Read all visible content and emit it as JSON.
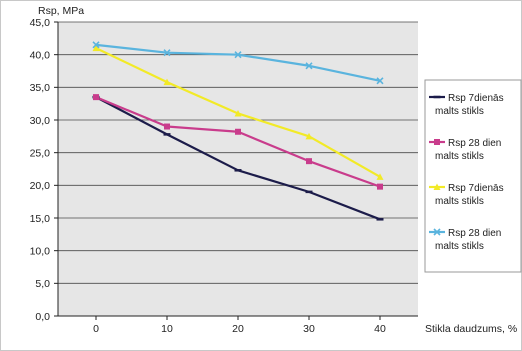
{
  "chart_data": {
    "type": "line",
    "ylabel": "Rsp, MPa",
    "xlabel": "Stikla daudzums, %",
    "x": [
      0,
      10,
      20,
      30,
      40
    ],
    "xtick_labels": [
      "0",
      "10",
      "20",
      "30",
      "40"
    ],
    "ylim": [
      0,
      45
    ],
    "yticks": [
      0,
      5,
      10,
      15,
      20,
      25,
      30,
      35,
      40,
      45
    ],
    "ytick_labels": [
      "0,0",
      "5,0",
      "10,0",
      "15,0",
      "20,0",
      "25,0",
      "30,0",
      "35,0",
      "40,0",
      "45,0"
    ],
    "grid": true,
    "legend_position": "right",
    "plot_background": "#e6e6e6",
    "series": [
      {
        "name": "Rsp 7dienās malts stikls",
        "legend_lines": [
          "Rsp 7dienās",
          "malts stikls"
        ],
        "color": "#1c1c4a",
        "marker": "dash",
        "values": [
          33.5,
          27.8,
          22.3,
          19.0,
          14.8
        ]
      },
      {
        "name": "Rsp 28 dienās malts stikls",
        "legend_lines": [
          "Rsp 28 dien",
          "malts stikls"
        ],
        "color": "#c93c8c",
        "marker": "square",
        "values": [
          33.5,
          29.0,
          28.2,
          23.7,
          19.8
        ]
      },
      {
        "name": "Rsp 7dienās malts stikls",
        "legend_lines": [
          "Rsp 7dienās",
          "malts stikls"
        ],
        "color": "#f2ea27",
        "marker": "triangle",
        "values": [
          41.0,
          35.8,
          31.0,
          27.5,
          21.3
        ]
      },
      {
        "name": "Rsp 28 dienās malts stikls",
        "legend_lines": [
          "Rsp 28 dien",
          "malts stikls"
        ],
        "color": "#5ab4de",
        "marker": "x",
        "values": [
          41.5,
          40.3,
          40.0,
          38.3,
          36.0
        ]
      }
    ]
  }
}
